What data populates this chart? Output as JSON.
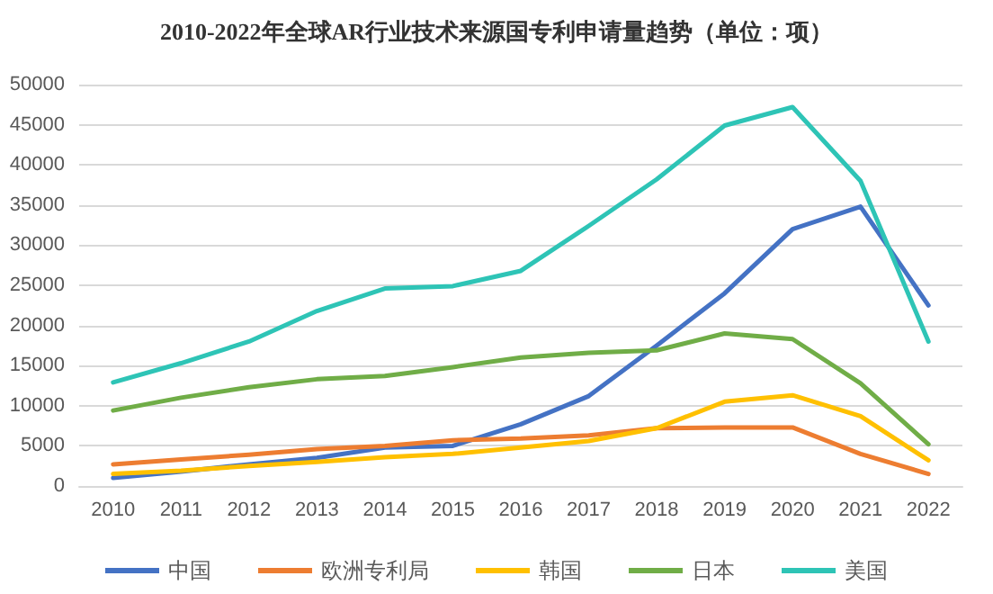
{
  "chart_data": {
    "type": "line",
    "title": "2010-2022年全球AR行业技术来源国专利申请量趋势（单位：项）",
    "categories": [
      "2010",
      "2011",
      "2012",
      "2013",
      "2014",
      "2015",
      "2016",
      "2017",
      "2018",
      "2019",
      "2020",
      "2021",
      "2022"
    ],
    "series": [
      {
        "name": "中国",
        "color": "#4472c4",
        "values": [
          1000,
          1800,
          2700,
          3500,
          4800,
          5000,
          7700,
          11200,
          17500,
          24000,
          32000,
          34800,
          22500
        ]
      },
      {
        "name": "欧洲专利局",
        "color": "#ed7d31",
        "values": [
          2700,
          3300,
          3900,
          4600,
          5000,
          5700,
          5900,
          6300,
          7200,
          7300,
          7300,
          4000,
          1500
        ]
      },
      {
        "name": "韩国",
        "color": "#ffc000",
        "values": [
          1500,
          1900,
          2500,
          3000,
          3600,
          4000,
          4800,
          5600,
          7200,
          10500,
          11300,
          8700,
          3200
        ]
      },
      {
        "name": "日本",
        "color": "#70ad47",
        "values": [
          9400,
          11000,
          12300,
          13300,
          13700,
          14800,
          16000,
          16600,
          16900,
          19000,
          18300,
          12800,
          5200
        ]
      },
      {
        "name": "美国",
        "color": "#2ec4b6",
        "values": [
          12900,
          15300,
          18000,
          21800,
          24600,
          24900,
          26800,
          32400,
          38200,
          44900,
          47200,
          38000,
          18000
        ]
      }
    ],
    "ylim": [
      0,
      50000
    ],
    "yticks": [
      0,
      5000,
      10000,
      15000,
      20000,
      25000,
      30000,
      35000,
      40000,
      45000,
      50000
    ],
    "grid": "y",
    "legend": "bottom",
    "marker": "none",
    "line_style": "solid"
  }
}
